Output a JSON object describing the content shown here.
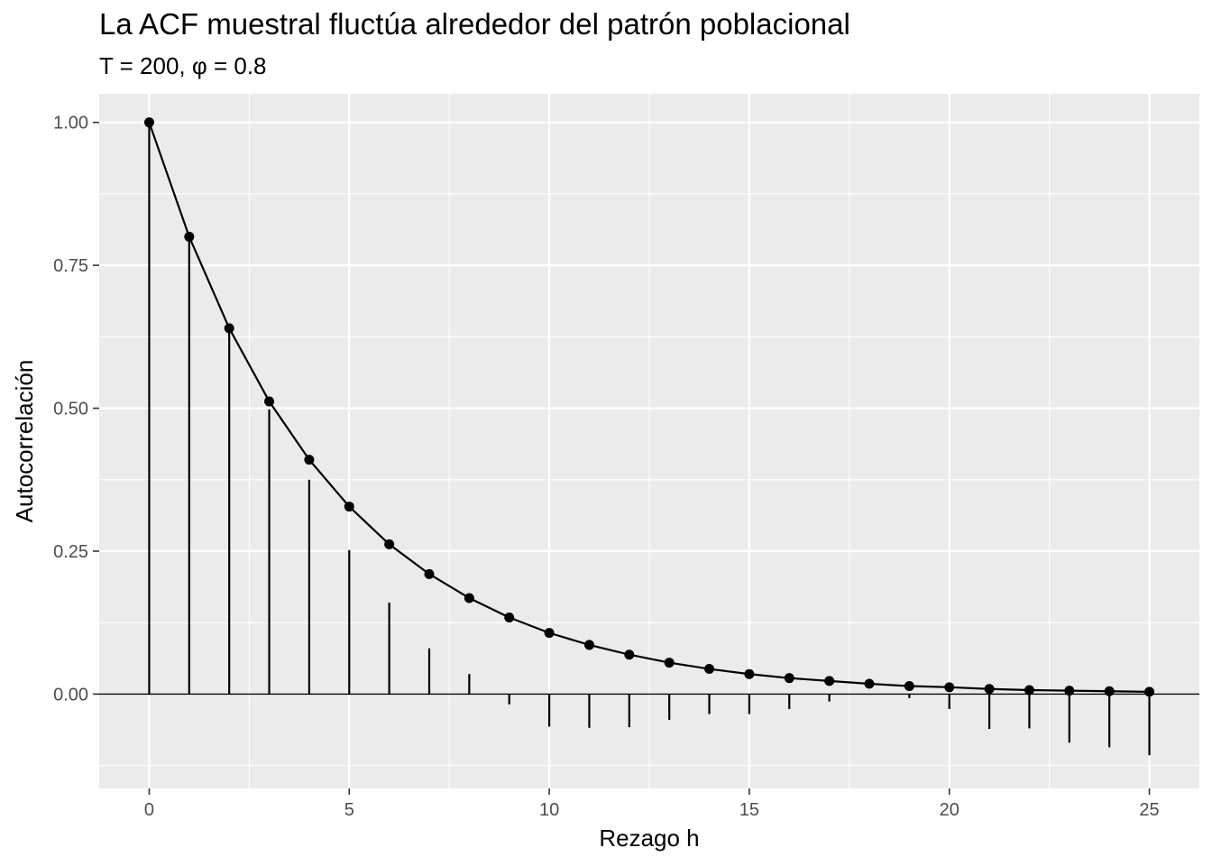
{
  "chart_data": {
    "type": "line",
    "title": "La ACF muestral fluctúa alrededor del patrón poblacional",
    "subtitle": "T = 200, φ = 0.8",
    "xlabel": "Rezago h",
    "ylabel": "Autocorrelación",
    "xlim": [
      -1.25,
      26.25
    ],
    "ylim": [
      -0.165,
      1.05
    ],
    "x_ticks": [
      0,
      5,
      10,
      15,
      20,
      25
    ],
    "x_tick_labels": [
      "0",
      "5",
      "10",
      "15",
      "20",
      "25"
    ],
    "y_ticks": [
      0,
      0.25,
      0.5,
      0.75,
      1.0
    ],
    "y_tick_labels": [
      "0.00",
      "0.25",
      "0.50",
      "0.75",
      "1.00"
    ],
    "grid": true,
    "background": "#ebebeb",
    "series": [
      {
        "kind": "segments",
        "x": [
          0,
          1,
          2,
          3,
          4,
          5,
          6,
          7,
          8,
          9,
          10,
          11,
          12,
          13,
          14,
          15,
          16,
          17,
          18,
          19,
          20,
          21,
          22,
          23,
          24,
          25
        ],
        "values": [
          1.0,
          0.8,
          0.632,
          0.498,
          0.375,
          0.252,
          0.16,
          0.08,
          0.035,
          -0.018,
          -0.057,
          -0.059,
          -0.058,
          -0.045,
          -0.035,
          -0.035,
          -0.026,
          -0.013,
          -0.001,
          -0.007,
          -0.026,
          -0.061,
          -0.06,
          -0.085,
          -0.093,
          -0.107
        ]
      },
      {
        "kind": "line+points",
        "x": [
          0,
          1,
          2,
          3,
          4,
          5,
          6,
          7,
          8,
          9,
          10,
          11,
          12,
          13,
          14,
          15,
          16,
          17,
          18,
          19,
          20,
          21,
          22,
          23,
          24,
          25
        ],
        "values": [
          1.0,
          0.8,
          0.64,
          0.512,
          0.41,
          0.328,
          0.262,
          0.21,
          0.168,
          0.134,
          0.107,
          0.086,
          0.069,
          0.055,
          0.044,
          0.035,
          0.028,
          0.023,
          0.018,
          0.014,
          0.012,
          0.009,
          0.007,
          0.006,
          0.005,
          0.004
        ]
      }
    ]
  }
}
